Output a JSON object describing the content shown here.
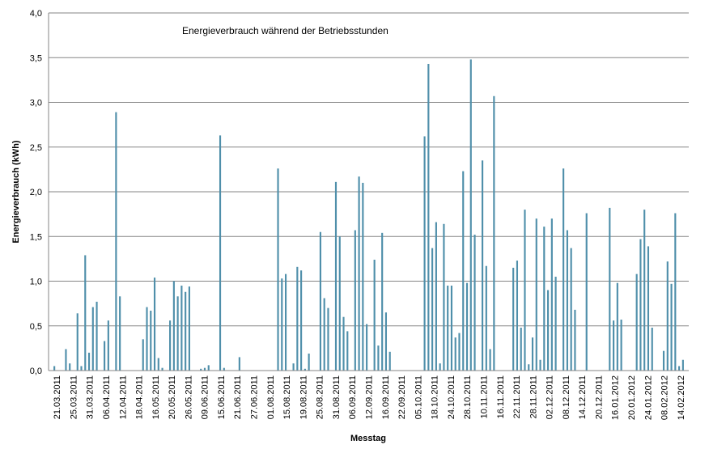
{
  "chart_data": {
    "type": "bar",
    "title": "Energieverbrauch während der Betriebsstunden",
    "xlabel": "Messtag",
    "ylabel": "Energieverbrauch  (kWh)",
    "ylim": [
      0,
      4.0
    ],
    "yticks": [
      "0,0",
      "0,5",
      "1,0",
      "1,5",
      "2,0",
      "2,5",
      "3,0",
      "3,5",
      "4,0"
    ],
    "grid": true,
    "legend": "none",
    "x_tick_labels": [
      "21.03.2011",
      "25.03.2011",
      "31.03.2011",
      "06.04.2011",
      "12.04.2011",
      "18.04.2011",
      "16.05.2011",
      "20.05.2011",
      "26.05.2011",
      "09.06.2011",
      "15.06.2011",
      "21.06.2011",
      "27.06.2011",
      "01.08.2011",
      "15.08.2011",
      "19.08.2011",
      "25.08.2011",
      "31.08.2011",
      "06.09.2011",
      "12.09.2011",
      "16.09.2011",
      "22.09.2011",
      "05.10.2011",
      "18.10.2011",
      "24.10.2011",
      "28.10.2011",
      "10.11.2011",
      "16.11.2011",
      "22.11.2011",
      "28.11.2011",
      "02.12.2011",
      "08.12.2011",
      "14.12.2011",
      "20.12.2011",
      "16.01.2012",
      "20.01.2012",
      "24.01.2012",
      "08.02.2012",
      "14.02.2012"
    ],
    "values": [
      0,
      0.05,
      0,
      0,
      0.24,
      0.08,
      0,
      0.64,
      0.05,
      1.29,
      0.2,
      0.71,
      0.77,
      0,
      0.33,
      0.56,
      0,
      2.89,
      0.83,
      0,
      0,
      0,
      0,
      0,
      0.35,
      0.71,
      0.67,
      1.04,
      0.14,
      0.03,
      0,
      0.56,
      1.0,
      0.83,
      0.95,
      0.88,
      0.94,
      0,
      0,
      0.02,
      0.03,
      0.06,
      0,
      0,
      2.63,
      0.03,
      0,
      0,
      0,
      0.15,
      0,
      0,
      0,
      0,
      0,
      0,
      0,
      0,
      0,
      2.26,
      1.03,
      1.08,
      0,
      0.08,
      1.16,
      1.12,
      0.02,
      0.19,
      0,
      0,
      1.55,
      0.81,
      0.7,
      0,
      2.11,
      1.5,
      0.6,
      0.44,
      0,
      1.57,
      2.17,
      2.1,
      0.52,
      0,
      1.24,
      0.28,
      1.54,
      0.65,
      0.21,
      0,
      0,
      0,
      0,
      0,
      0,
      0,
      0,
      2.62,
      3.43,
      1.37,
      1.66,
      0.08,
      1.64,
      0.95,
      0.95,
      0.37,
      0.42,
      2.23,
      0.98,
      3.48,
      1.52,
      0,
      2.35,
      1.17,
      0.24,
      3.07,
      0,
      0,
      0,
      0,
      1.15,
      1.23,
      0.48,
      1.8,
      0.07,
      0.37,
      1.7,
      0.12,
      1.61,
      0.9,
      1.7,
      1.05,
      0,
      2.26,
      1.57,
      1.37,
      0.68,
      0,
      0,
      1.76,
      0,
      0,
      0,
      0,
      0,
      1.82,
      0.56,
      0.98,
      0.57,
      0,
      0,
      0,
      1.08,
      1.47,
      1.8,
      1.39,
      0.48,
      0,
      0,
      0.22,
      1.22,
      0.97,
      1.76,
      0.05,
      0.12,
      0
    ]
  },
  "colors": {
    "bar": "#4F8FAA",
    "grid": "#868686",
    "axis": "#868686",
    "background": "#ffffff"
  }
}
